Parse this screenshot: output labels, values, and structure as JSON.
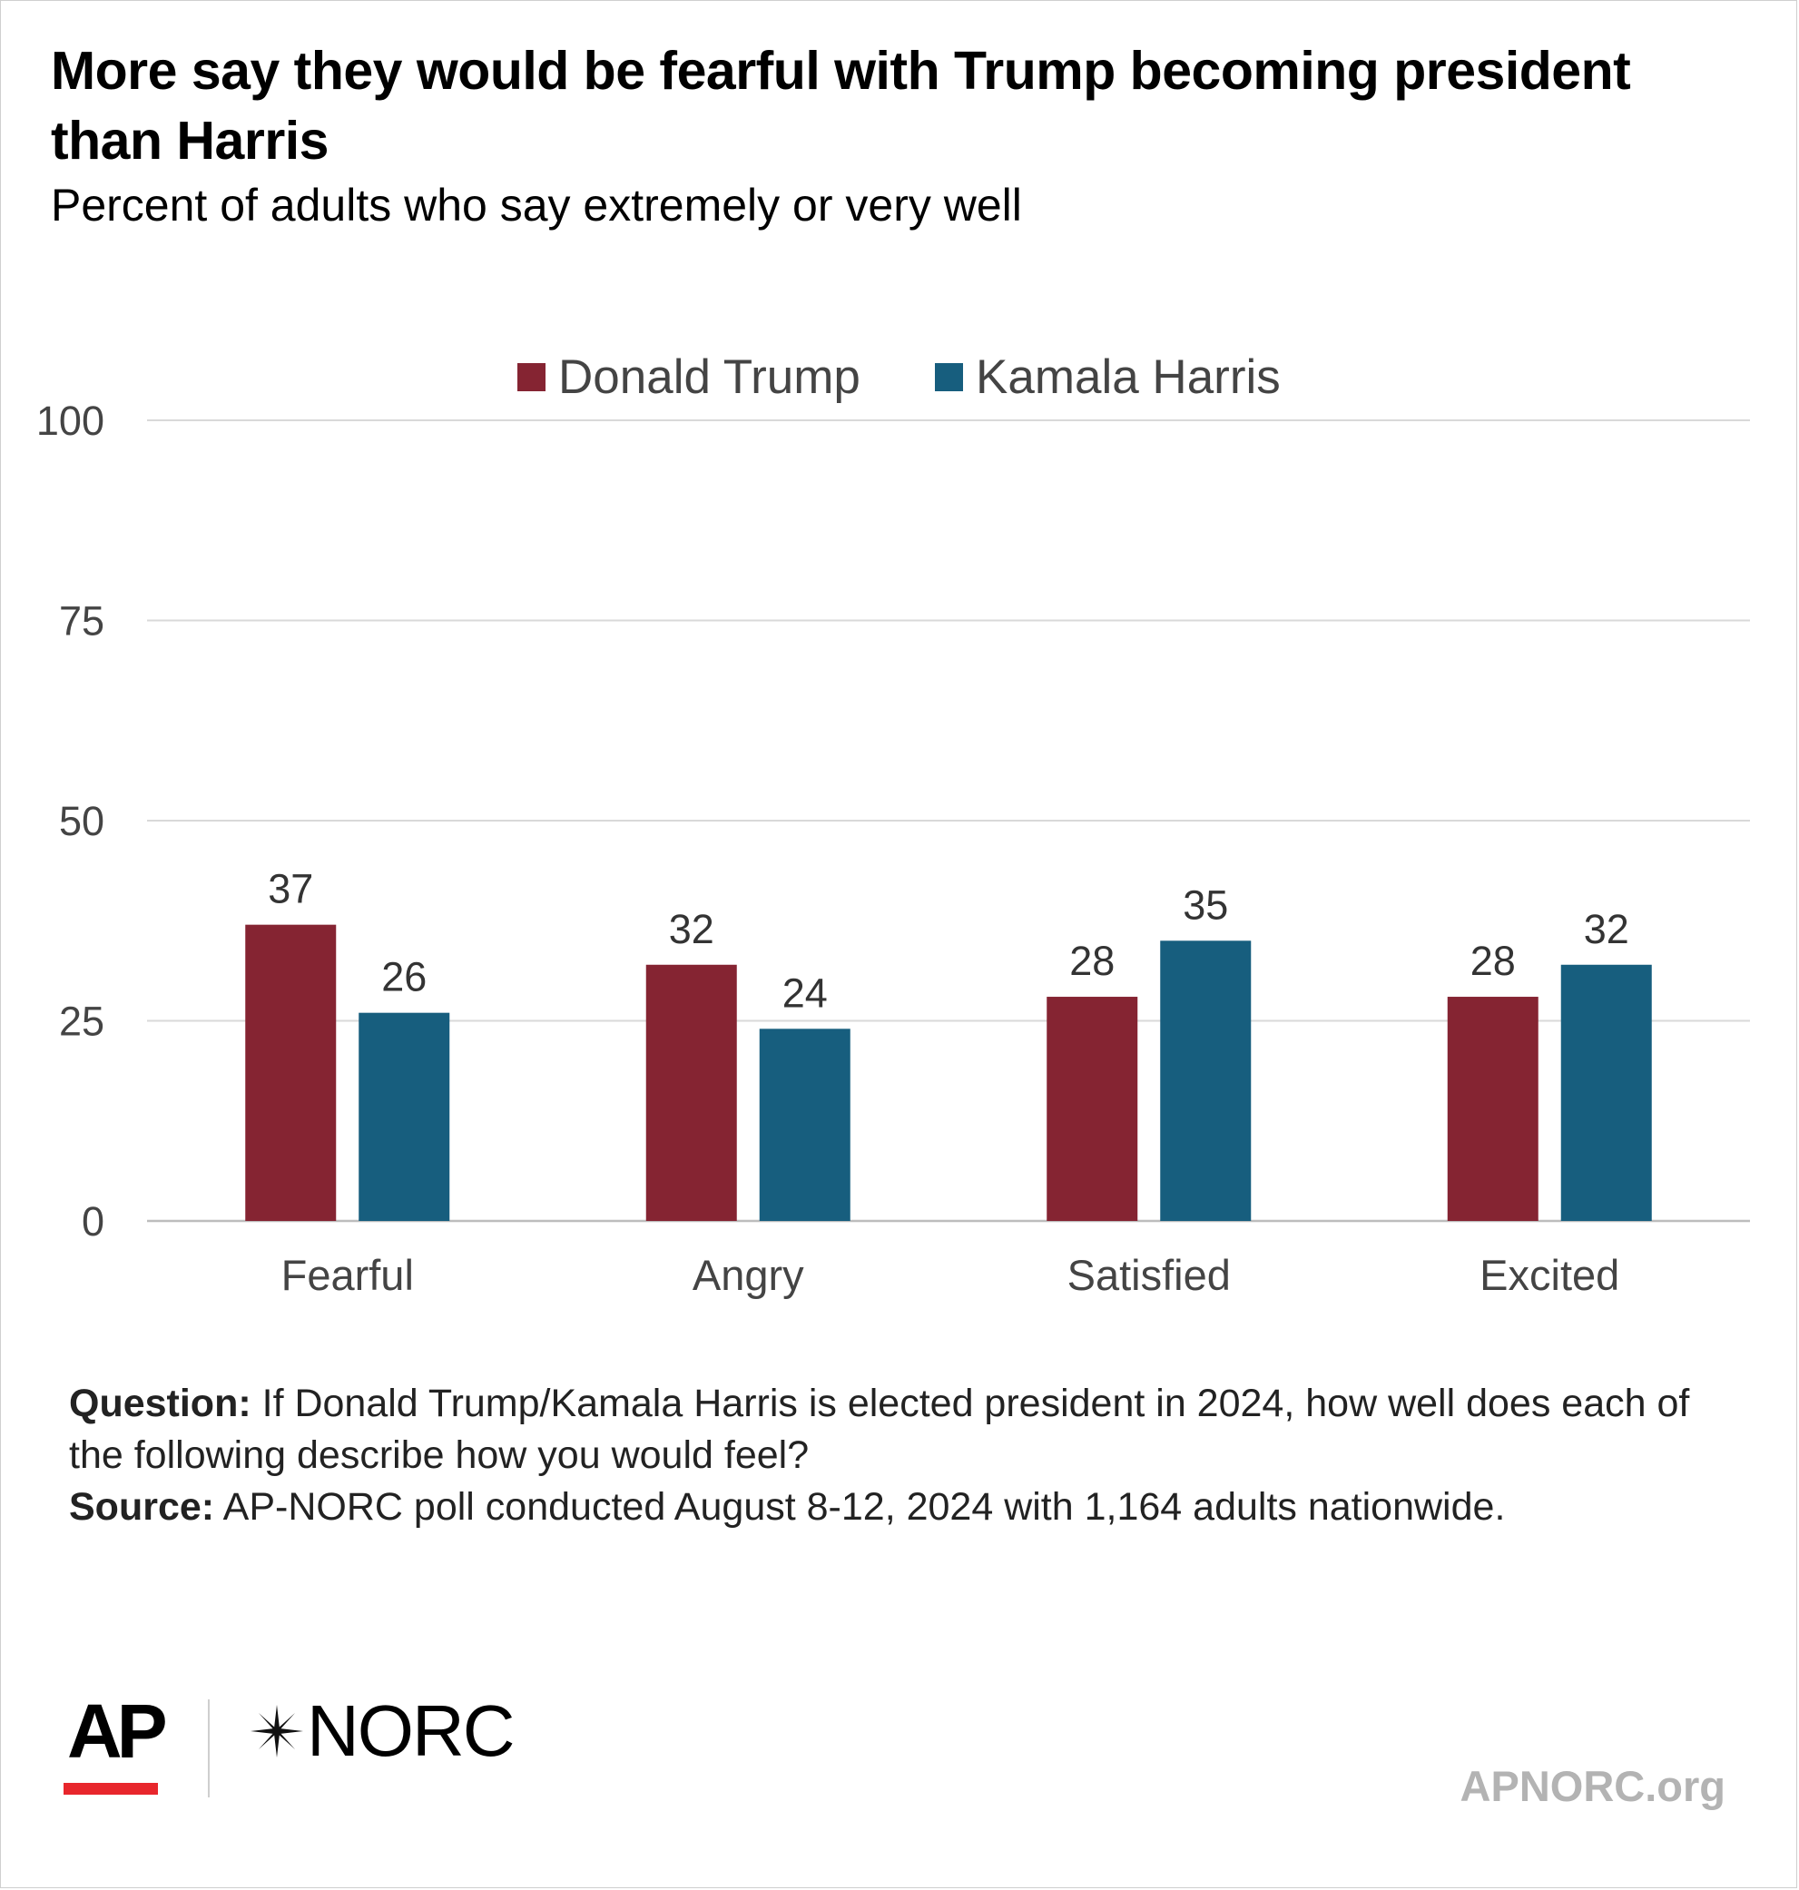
{
  "title": "More say they would be fearful with Trump becoming president than Harris",
  "subtitle": "Percent of adults who say extremely or very well",
  "chart_data": {
    "type": "bar",
    "categories": [
      "Fearful",
      "Angry",
      "Satisfied",
      "Excited"
    ],
    "series": [
      {
        "name": "Donald Trump",
        "values": [
          37,
          32,
          28,
          28
        ],
        "color": "#852432"
      },
      {
        "name": "Kamala Harris",
        "values": [
          26,
          24,
          35,
          32
        ],
        "color": "#175e7e"
      }
    ],
    "yticks": [
      0,
      25,
      50,
      75,
      100
    ],
    "ylim": [
      0,
      100
    ],
    "grid": true,
    "legend_position": "top-center"
  },
  "notes": {
    "question_label": "Question:",
    "question_text": " If Donald Trump/Kamala Harris is elected president in 2024, how well does each of the following describe how you would feel?",
    "source_label": "Source:",
    "source_text": " AP-NORC poll conducted August 8-12, 2024 with 1,164 adults nationwide."
  },
  "branding": {
    "ap_logo": "AP",
    "norc_logo": "NORC",
    "url": "APNORC.org"
  }
}
